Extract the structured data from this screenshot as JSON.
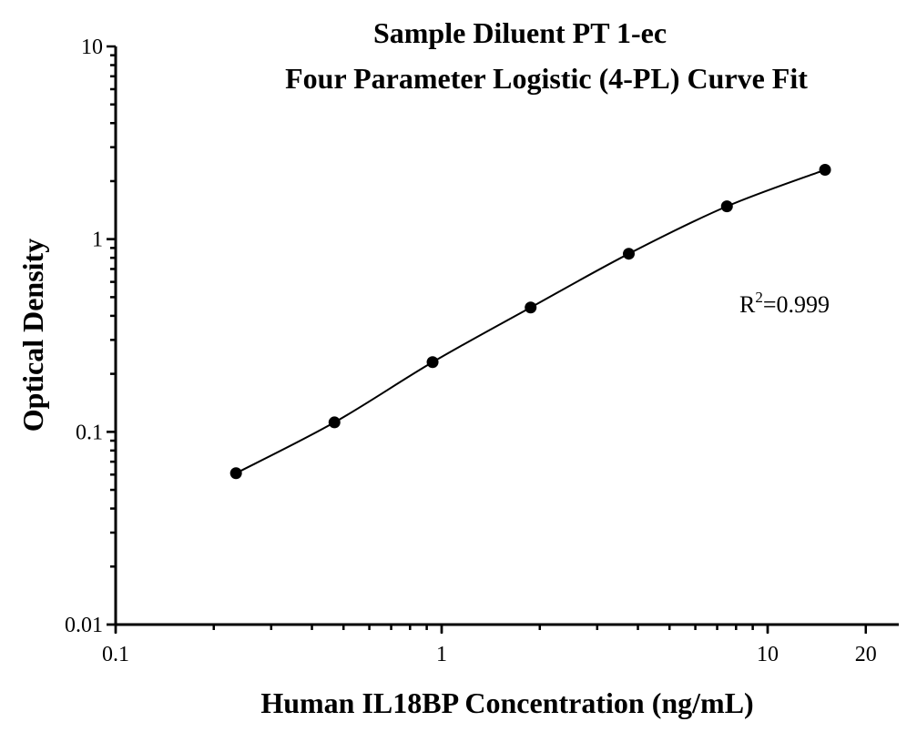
{
  "chart_data": {
    "type": "scatter",
    "title": "Sample Diluent PT 1-ec",
    "subtitle": "Four Parameter Logistic (4-PL) Curve Fit",
    "xlabel": "Human IL18BP Concentration (ng/mL)",
    "ylabel": "Optical Density",
    "xscale": "log",
    "yscale": "log",
    "xlim": [
      0.1,
      25
    ],
    "ylim": [
      0.01,
      10
    ],
    "x_ticks": [
      "0.1",
      "1",
      "10",
      "20"
    ],
    "x_tick_values": [
      0.1,
      1,
      10,
      20
    ],
    "y_ticks": [
      "0.01",
      "0.1",
      "1",
      "10"
    ],
    "y_tick_values": [
      0.01,
      0.1,
      1,
      10
    ],
    "grid": false,
    "annotation": {
      "base": "R",
      "sup": "2",
      "rest": "=0.999"
    },
    "points": {
      "x": [
        0.234,
        0.469,
        0.938,
        1.875,
        3.75,
        7.5,
        15
      ],
      "y": [
        0.061,
        0.112,
        0.23,
        0.442,
        0.84,
        1.48,
        2.29
      ]
    },
    "fit": "4-PL curve",
    "colors": {
      "points": "#000000",
      "curve": "#000000"
    }
  }
}
